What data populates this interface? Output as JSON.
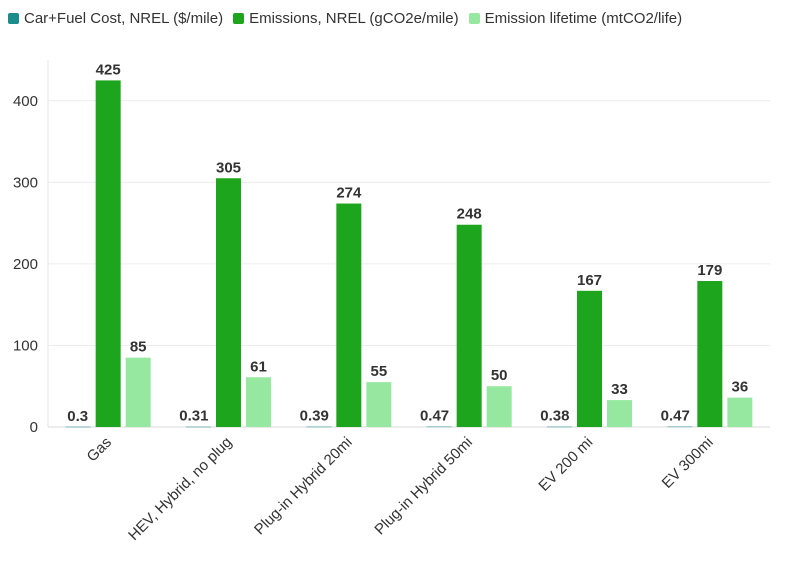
{
  "chart_data": {
    "type": "bar",
    "categories": [
      "Gas",
      "HEV, Hybrid, no plug",
      "Plug-in Hybrid 20mi",
      "Plug-in Hybrid 50mi",
      "EV 200 mi",
      "EV 300mi"
    ],
    "series": [
      {
        "name": "Car+Fuel Cost, NREL ($/mile)",
        "color": "#1a8c8a",
        "values": [
          0.3,
          0.31,
          0.39,
          0.47,
          0.38,
          0.47
        ],
        "labels": [
          "0.3",
          "0.31",
          "0.39",
          "0.47",
          "0.38",
          "0.47"
        ]
      },
      {
        "name": "Emissions, NREL (gCO2e/mile)",
        "color": "#1ea51e",
        "values": [
          425,
          305,
          274,
          248,
          167,
          179
        ],
        "labels": [
          "425",
          "305",
          "274",
          "248",
          "167",
          "179"
        ]
      },
      {
        "name": "Emission lifetime (mtCO2/life)",
        "color": "#96e8a0",
        "values": [
          85,
          61,
          55,
          50,
          33,
          36
        ],
        "labels": [
          "85",
          "61",
          "55",
          "50",
          "33",
          "36"
        ]
      }
    ],
    "ylim": [
      0,
      450
    ],
    "yticks": [
      "0",
      "100",
      "200",
      "300",
      "400"
    ],
    "grid": true,
    "legend_position": "top-left"
  }
}
